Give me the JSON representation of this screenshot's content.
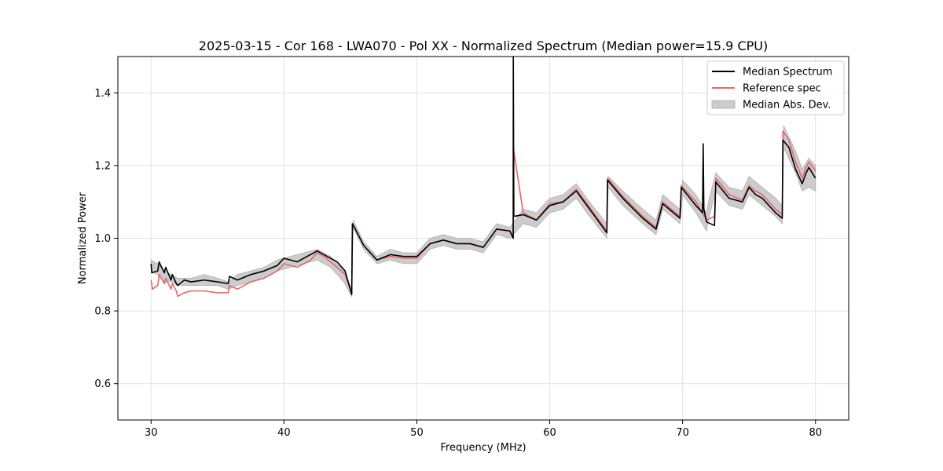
{
  "chart_data": {
    "type": "line",
    "title": "2025-03-15 - Cor 168 - LWA070 - Pol XX - Normalized Spectrum (Median power=15.9 CPU)",
    "xlabel": "Frequency (MHz)",
    "ylabel": "Normalized Power",
    "xlim": [
      27.5,
      82.5
    ],
    "ylim": [
      0.5,
      1.5
    ],
    "xticks": [
      30,
      40,
      50,
      60,
      70,
      80
    ],
    "yticks": [
      0.6,
      0.8,
      1.0,
      1.2,
      1.4
    ],
    "xtick_labels": [
      "30",
      "40",
      "50",
      "60",
      "70",
      "80"
    ],
    "ytick_labels": [
      "0.6",
      "0.8",
      "1.0",
      "1.2",
      "1.4"
    ],
    "grid": true,
    "legend_position": "top-right",
    "series": [
      {
        "name": "Median Abs. Dev.",
        "kind": "band",
        "color": "#b0b0b0",
        "x": [
          30.0,
          30.5,
          31.0,
          31.5,
          32.0,
          33.0,
          34.0,
          35.0,
          35.8,
          36.5,
          37.5,
          38.5,
          39.5,
          40.5,
          41.5,
          42.5,
          43.5,
          44.5,
          45.1,
          45.2,
          46.0,
          47.0,
          48.0,
          49.0,
          50.0,
          51.0,
          52.0,
          53.0,
          54.0,
          55.0,
          56.0,
          57.0,
          58.0,
          59.0,
          60.0,
          61.0,
          62.0,
          63.0,
          64.3,
          64.4,
          65.5,
          67.0,
          68.0,
          68.5,
          69.8,
          70.0,
          71.0,
          71.8,
          72.0,
          72.5,
          73.5,
          74.5,
          75.0,
          76.0,
          77.0,
          77.5,
          77.6,
          78.5,
          79.0,
          79.5,
          80.0
        ],
        "lower": [
          0.91,
          0.9,
          0.88,
          0.88,
          0.87,
          0.87,
          0.87,
          0.87,
          0.86,
          0.87,
          0.88,
          0.89,
          0.91,
          0.92,
          0.93,
          0.94,
          0.92,
          0.88,
          0.84,
          1.03,
          0.97,
          0.93,
          0.94,
          0.93,
          0.93,
          0.97,
          0.98,
          0.97,
          0.97,
          0.96,
          1.01,
          1.0,
          1.04,
          1.03,
          1.07,
          1.08,
          1.11,
          1.06,
          1.0,
          1.14,
          1.09,
          1.04,
          1.01,
          1.08,
          1.04,
          1.12,
          1.07,
          1.02,
          1.06,
          1.13,
          1.09,
          1.08,
          1.12,
          1.09,
          1.06,
          1.04,
          1.25,
          1.18,
          1.13,
          1.14,
          1.13
        ],
        "upper": [
          0.94,
          0.93,
          0.91,
          0.9,
          0.89,
          0.89,
          0.9,
          0.89,
          0.88,
          0.9,
          0.91,
          0.92,
          0.94,
          0.95,
          0.96,
          0.97,
          0.95,
          0.91,
          0.86,
          1.05,
          0.99,
          0.95,
          0.97,
          0.96,
          0.96,
          1.0,
          1.01,
          1.0,
          1.0,
          0.99,
          1.04,
          1.03,
          1.08,
          1.07,
          1.11,
          1.12,
          1.15,
          1.1,
          1.04,
          1.17,
          1.13,
          1.08,
          1.05,
          1.12,
          1.08,
          1.16,
          1.12,
          1.07,
          1.11,
          1.18,
          1.14,
          1.13,
          1.17,
          1.14,
          1.11,
          1.09,
          1.31,
          1.24,
          1.19,
          1.22,
          1.2
        ]
      },
      {
        "name": "Reference spec",
        "kind": "line",
        "color": "#e8666a",
        "x": [
          30.0,
          30.1,
          30.5,
          30.6,
          31.0,
          31.1,
          31.5,
          31.6,
          31.9,
          32.0,
          32.5,
          33.0,
          34.0,
          35.0,
          35.8,
          35.9,
          36.5,
          37.5,
          38.5,
          39.5,
          40.0,
          41.0,
          42.0,
          42.5,
          43.0,
          44.0,
          44.6,
          45.1,
          45.15,
          45.3,
          46.0,
          47.0,
          48.0,
          49.0,
          50.0,
          51.0,
          52.0,
          53.0,
          54.0,
          55.0,
          56.0,
          57.0,
          57.25,
          57.3,
          58.0,
          59.0,
          60.0,
          61.0,
          62.0,
          63.0,
          64.3,
          64.35,
          65.5,
          67.0,
          68.0,
          68.5,
          69.8,
          69.9,
          71.0,
          71.8,
          72.4,
          72.5,
          73.5,
          74.5,
          75.0,
          75.5,
          76.0,
          77.0,
          77.5,
          77.55,
          78.0,
          78.5,
          79.0,
          79.3,
          79.5,
          80.0
        ],
        "y": [
          0.885,
          0.86,
          0.87,
          0.9,
          0.875,
          0.89,
          0.86,
          0.875,
          0.855,
          0.84,
          0.85,
          0.855,
          0.855,
          0.85,
          0.85,
          0.87,
          0.86,
          0.88,
          0.89,
          0.91,
          0.93,
          0.92,
          0.94,
          0.96,
          0.95,
          0.92,
          0.9,
          0.85,
          1.04,
          1.03,
          0.98,
          0.94,
          0.95,
          0.945,
          0.945,
          0.985,
          0.995,
          0.985,
          0.985,
          0.975,
          1.025,
          1.02,
          1.0,
          1.24,
          1.07,
          1.05,
          1.095,
          1.1,
          1.135,
          1.085,
          1.02,
          1.165,
          1.115,
          1.06,
          1.03,
          1.1,
          1.06,
          1.145,
          1.1,
          1.05,
          1.06,
          1.165,
          1.12,
          1.105,
          1.145,
          1.13,
          1.12,
          1.08,
          1.065,
          1.295,
          1.27,
          1.21,
          1.165,
          1.195,
          1.21,
          1.185
        ]
      },
      {
        "name": "Median Spectrum",
        "kind": "line",
        "color": "#000000",
        "x": [
          30.0,
          30.05,
          30.5,
          30.6,
          31.0,
          31.1,
          31.5,
          31.6,
          31.9,
          32.0,
          32.5,
          33.0,
          34.0,
          35.0,
          35.8,
          35.9,
          36.5,
          37.5,
          38.5,
          39.5,
          40.0,
          41.0,
          42.0,
          42.5,
          43.0,
          44.0,
          44.6,
          45.1,
          45.15,
          45.3,
          46.0,
          47.0,
          48.0,
          49.0,
          50.0,
          51.0,
          52.0,
          53.0,
          54.0,
          55.0,
          56.0,
          57.0,
          57.25,
          57.26,
          57.3,
          58.0,
          59.0,
          60.0,
          61.0,
          62.0,
          63.0,
          64.3,
          64.35,
          65.5,
          67.0,
          68.0,
          68.5,
          69.8,
          69.9,
          71.0,
          71.5,
          71.55,
          71.6,
          71.8,
          72.4,
          72.5,
          73.5,
          74.5,
          75.0,
          75.5,
          76.0,
          77.0,
          77.5,
          77.55,
          78.0,
          78.5,
          79.0,
          79.3,
          79.5,
          80.0
        ],
        "y": [
          0.93,
          0.905,
          0.91,
          0.935,
          0.905,
          0.92,
          0.885,
          0.9,
          0.875,
          0.87,
          0.885,
          0.88,
          0.885,
          0.88,
          0.875,
          0.895,
          0.885,
          0.9,
          0.91,
          0.925,
          0.945,
          0.935,
          0.955,
          0.965,
          0.955,
          0.935,
          0.91,
          0.845,
          1.04,
          1.03,
          0.98,
          0.94,
          0.955,
          0.95,
          0.95,
          0.985,
          0.995,
          0.985,
          0.985,
          0.975,
          1.025,
          1.02,
          1.0,
          1.5,
          1.06,
          1.065,
          1.05,
          1.09,
          1.1,
          1.13,
          1.08,
          1.015,
          1.16,
          1.11,
          1.055,
          1.025,
          1.095,
          1.055,
          1.14,
          1.09,
          1.07,
          1.26,
          1.08,
          1.045,
          1.035,
          1.155,
          1.11,
          1.1,
          1.14,
          1.12,
          1.11,
          1.07,
          1.055,
          1.27,
          1.25,
          1.19,
          1.15,
          1.18,
          1.195,
          1.165
        ]
      }
    ]
  }
}
